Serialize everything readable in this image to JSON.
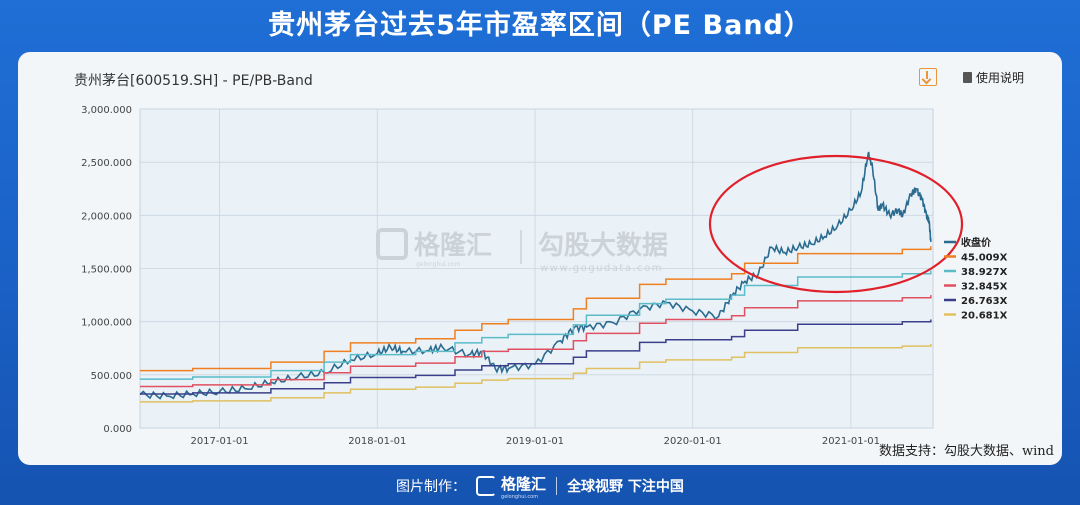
{
  "banner": {
    "title": "贵州茅台过去5年市盈率区间（PE Band）"
  },
  "chart_header": {
    "title": "贵州茅台[600519.SH] - PE/PB-Band",
    "help_label": "使用说明"
  },
  "watermark": {
    "brand": "格隆汇",
    "brand_url": "gelonghui.com",
    "partner": "勾股大数据",
    "partner_url": "www.gogudata.com"
  },
  "source": "数据支持：勾股大数据、wind",
  "footer": {
    "made_by": "图片制作：",
    "logo": "格隆汇",
    "logo_url": "gelonghui.com",
    "slogan": "全球视野 下注中国"
  },
  "chart_data": {
    "type": "line",
    "title": "贵州茅台[600519.SH] - PE/PB-Band",
    "xlabel": "",
    "ylabel": "",
    "x_ticks": [
      "2017-01-01",
      "2018-01-01",
      "2019-01-01",
      "2020-01-01",
      "2021-01-01"
    ],
    "xlim": [
      "2016-07-01",
      "2021-07-10"
    ],
    "ylim": [
      0,
      3000
    ],
    "y_ticks": [
      "0.000",
      "500.000",
      "1,000.000",
      "1,500.000",
      "2,000.000",
      "2,500.000",
      "3,000.000"
    ],
    "grid": true,
    "legend_position": "right",
    "annotation": "red ellipse highlighting 2021 peak region",
    "series": [
      {
        "name": "收盘价",
        "color": "#2b6b8f",
        "points": [
          [
            "2016-07-01",
            315
          ],
          [
            "2016-09-01",
            300
          ],
          [
            "2016-11-01",
            320
          ],
          [
            "2017-01-01",
            340
          ],
          [
            "2017-03-01",
            370
          ],
          [
            "2017-05-01",
            430
          ],
          [
            "2017-07-01",
            480
          ],
          [
            "2017-09-01",
            520
          ],
          [
            "2017-11-01",
            640
          ],
          [
            "2018-01-01",
            700
          ],
          [
            "2018-02-01",
            760
          ],
          [
            "2018-03-01",
            720
          ],
          [
            "2018-05-01",
            730
          ],
          [
            "2018-06-01",
            760
          ],
          [
            "2018-08-01",
            690
          ],
          [
            "2018-09-01",
            720
          ],
          [
            "2018-10-01",
            560
          ],
          [
            "2018-11-01",
            560
          ],
          [
            "2019-01-01",
            600
          ],
          [
            "2019-03-01",
            820
          ],
          [
            "2019-04-01",
            940
          ],
          [
            "2019-05-01",
            950
          ],
          [
            "2019-07-01",
            990
          ],
          [
            "2019-09-01",
            1120
          ],
          [
            "2019-11-01",
            1180
          ],
          [
            "2020-01-01",
            1100
          ],
          [
            "2020-03-01",
            1050
          ],
          [
            "2020-04-01",
            1250
          ],
          [
            "2020-05-01",
            1380
          ],
          [
            "2020-06-01",
            1450
          ],
          [
            "2020-07-01",
            1700
          ],
          [
            "2020-08-01",
            1650
          ],
          [
            "2020-09-01",
            1700
          ],
          [
            "2020-10-01",
            1730
          ],
          [
            "2020-11-01",
            1800
          ],
          [
            "2020-12-01",
            1900
          ],
          [
            "2021-01-01",
            2050
          ],
          [
            "2021-01-25",
            2220
          ],
          [
            "2021-02-10",
            2580
          ],
          [
            "2021-02-20",
            2450
          ],
          [
            "2021-03-05",
            2050
          ],
          [
            "2021-03-15",
            2100
          ],
          [
            "2021-04-01",
            2000
          ],
          [
            "2021-04-20",
            2050
          ],
          [
            "2021-05-01",
            2000
          ],
          [
            "2021-05-20",
            2200
          ],
          [
            "2021-06-01",
            2250
          ],
          [
            "2021-06-15",
            2150
          ],
          [
            "2021-06-25",
            2000
          ],
          [
            "2021-07-01",
            1950
          ],
          [
            "2021-07-05",
            1750
          ]
        ]
      },
      {
        "name": "45.009X",
        "color": "#f07f20",
        "points": [
          [
            "2016-07-01",
            540
          ],
          [
            "2016-10-31",
            560
          ],
          [
            "2017-04-30",
            620
          ],
          [
            "2017-08-31",
            720
          ],
          [
            "2017-10-31",
            800
          ],
          [
            "2018-03-31",
            840
          ],
          [
            "2018-06-30",
            920
          ],
          [
            "2018-08-31",
            980
          ],
          [
            "2018-10-31",
            1020
          ],
          [
            "2019-03-31",
            1120
          ],
          [
            "2019-04-30",
            1220
          ],
          [
            "2019-08-31",
            1350
          ],
          [
            "2019-10-31",
            1400
          ],
          [
            "2020-03-31",
            1450
          ],
          [
            "2020-04-30",
            1550
          ],
          [
            "2020-08-31",
            1640
          ],
          [
            "2021-04-30",
            1680
          ],
          [
            "2021-07-05",
            1710
          ]
        ]
      },
      {
        "name": "38.927X",
        "color": "#5bbcc8",
        "points": [
          [
            "2016-07-01",
            460
          ],
          [
            "2016-10-31",
            480
          ],
          [
            "2017-04-30",
            540
          ],
          [
            "2017-08-31",
            620
          ],
          [
            "2017-10-31",
            690
          ],
          [
            "2018-03-31",
            720
          ],
          [
            "2018-06-30",
            800
          ],
          [
            "2018-08-31",
            850
          ],
          [
            "2018-10-31",
            880
          ],
          [
            "2019-03-31",
            970
          ],
          [
            "2019-04-30",
            1060
          ],
          [
            "2019-08-31",
            1170
          ],
          [
            "2019-10-31",
            1210
          ],
          [
            "2020-03-31",
            1250
          ],
          [
            "2020-04-30",
            1340
          ],
          [
            "2020-08-31",
            1420
          ],
          [
            "2021-04-30",
            1450
          ],
          [
            "2021-07-05",
            1480
          ]
        ]
      },
      {
        "name": "32.845X",
        "color": "#e05060",
        "points": [
          [
            "2016-07-01",
            390
          ],
          [
            "2016-10-31",
            405
          ],
          [
            "2017-04-30",
            455
          ],
          [
            "2017-08-31",
            520
          ],
          [
            "2017-10-31",
            580
          ],
          [
            "2018-03-31",
            610
          ],
          [
            "2018-06-30",
            670
          ],
          [
            "2018-08-31",
            720
          ],
          [
            "2018-10-31",
            740
          ],
          [
            "2019-03-31",
            820
          ],
          [
            "2019-04-30",
            890
          ],
          [
            "2019-08-31",
            985
          ],
          [
            "2019-10-31",
            1020
          ],
          [
            "2020-03-31",
            1055
          ],
          [
            "2020-04-30",
            1130
          ],
          [
            "2020-08-31",
            1195
          ],
          [
            "2021-04-30",
            1225
          ],
          [
            "2021-07-05",
            1250
          ]
        ]
      },
      {
        "name": "26.763X",
        "color": "#3b3f8a",
        "points": [
          [
            "2016-07-01",
            320
          ],
          [
            "2016-10-31",
            330
          ],
          [
            "2017-04-30",
            370
          ],
          [
            "2017-08-31",
            425
          ],
          [
            "2017-10-31",
            475
          ],
          [
            "2018-03-31",
            495
          ],
          [
            "2018-06-30",
            545
          ],
          [
            "2018-08-31",
            585
          ],
          [
            "2018-10-31",
            605
          ],
          [
            "2019-03-31",
            665
          ],
          [
            "2019-04-30",
            725
          ],
          [
            "2019-08-31",
            805
          ],
          [
            "2019-10-31",
            830
          ],
          [
            "2020-03-31",
            860
          ],
          [
            "2020-04-30",
            920
          ],
          [
            "2020-08-31",
            975
          ],
          [
            "2021-04-30",
            1000
          ],
          [
            "2021-07-05",
            1020
          ]
        ]
      },
      {
        "name": "20.681X",
        "color": "#e0c060",
        "points": [
          [
            "2016-07-01",
            245
          ],
          [
            "2016-10-31",
            255
          ],
          [
            "2017-04-30",
            285
          ],
          [
            "2017-08-31",
            330
          ],
          [
            "2017-10-31",
            365
          ],
          [
            "2018-03-31",
            385
          ],
          [
            "2018-06-30",
            420
          ],
          [
            "2018-08-31",
            450
          ],
          [
            "2018-10-31",
            465
          ],
          [
            "2019-03-31",
            515
          ],
          [
            "2019-04-30",
            560
          ],
          [
            "2019-08-31",
            620
          ],
          [
            "2019-10-31",
            640
          ],
          [
            "2020-03-31",
            665
          ],
          [
            "2020-04-30",
            710
          ],
          [
            "2020-08-31",
            755
          ],
          [
            "2021-04-30",
            770
          ],
          [
            "2021-07-05",
            790
          ]
        ]
      }
    ]
  }
}
